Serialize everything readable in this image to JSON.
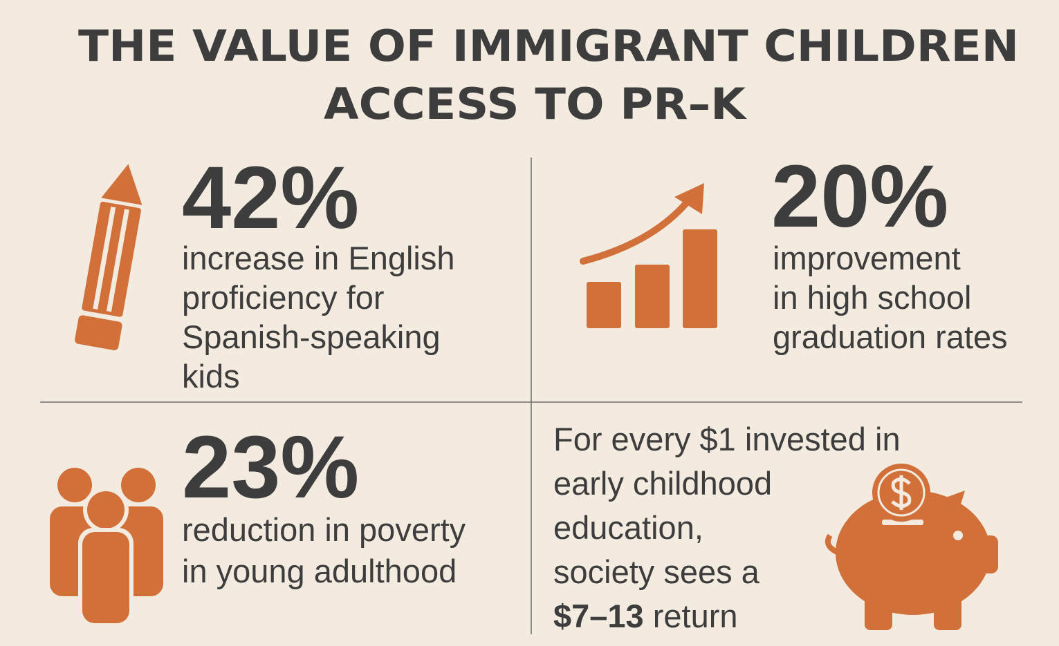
{
  "header": {
    "title": [
      "THE VALUE OF IMMIGRANT CHILDREN",
      "ACCESS TO PR–K"
    ]
  },
  "stats": [
    {
      "figure": "42%",
      "text": [
        "increase in English",
        "proficiency for",
        "Spanish-speaking",
        "kids"
      ]
    },
    {
      "figure": "20%",
      "text": [
        "improvement",
        "in high school",
        "graduation rates"
      ]
    },
    {
      "figure": "23%",
      "text": [
        "reduction in poverty",
        "in young adulthood"
      ]
    }
  ],
  "roi": {
    "text": [
      "For every $1 invested in",
      "early childhood",
      "education,",
      "society sees a"
    ],
    "highlight": "$7–13",
    "rest": "return"
  }
}
